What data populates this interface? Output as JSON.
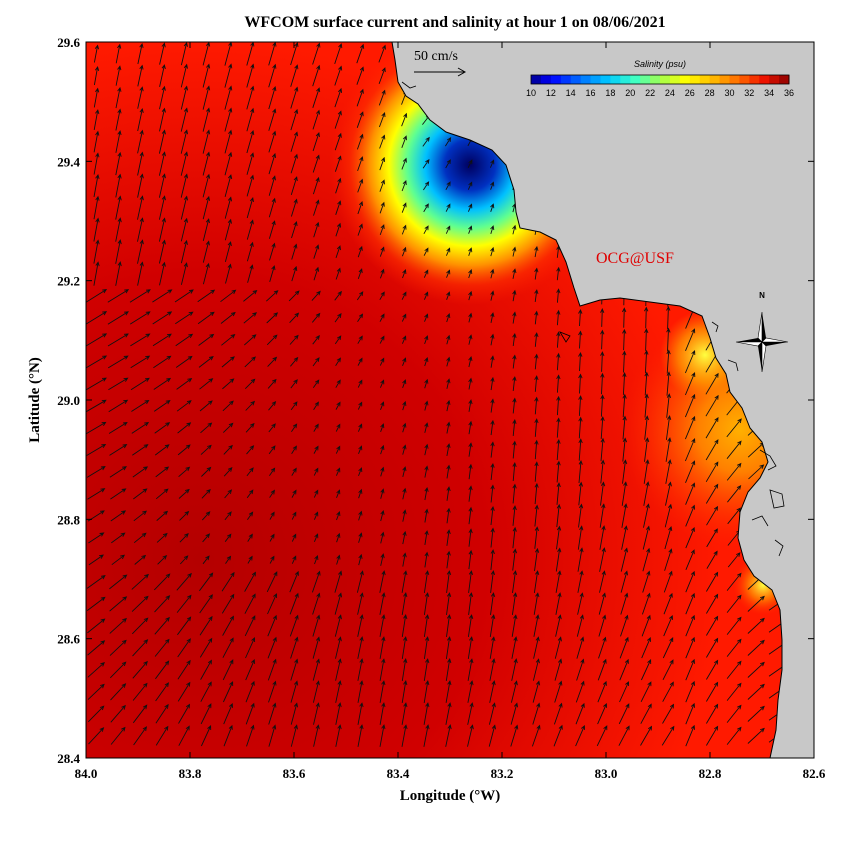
{
  "title": "WFCOM surface current and salinity at hour 1 on 08/06/2021",
  "xlabel": "Longitude (°W)",
  "ylabel": "Latitude (°N)",
  "x_ticks": [
    "84.0",
    "83.8",
    "83.6",
    "83.4",
    "83.2",
    "83.0",
    "82.8",
    "82.6"
  ],
  "y_ticks": [
    "29.6",
    "29.4",
    "29.2",
    "29.0",
    "28.8",
    "28.6",
    "28.4"
  ],
  "colorbar": {
    "title": "Salinity (psu)",
    "ticks": [
      "10",
      "12",
      "14",
      "16",
      "18",
      "20",
      "22",
      "24",
      "26",
      "28",
      "30",
      "32",
      "34",
      "36"
    ],
    "range": [
      10,
      36
    ]
  },
  "scale_label": "50 cm/s",
  "watermark": "OCG@USF",
  "north_label": "N",
  "colors": {
    "land": "#c8c8c8",
    "salinity_high": "#b00000",
    "salinity_mid": "#ff2000",
    "salinity_low": "#000080",
    "watermark": "#e00000"
  },
  "chart_data": {
    "type": "heatmap",
    "variable": "surface salinity with current vectors",
    "xlim_deg_w": [
      84.0,
      82.6
    ],
    "ylim_deg_n": [
      28.4,
      29.6
    ],
    "salinity_range_psu": [
      10,
      36
    ],
    "current_scale_cm_s": 50
  }
}
